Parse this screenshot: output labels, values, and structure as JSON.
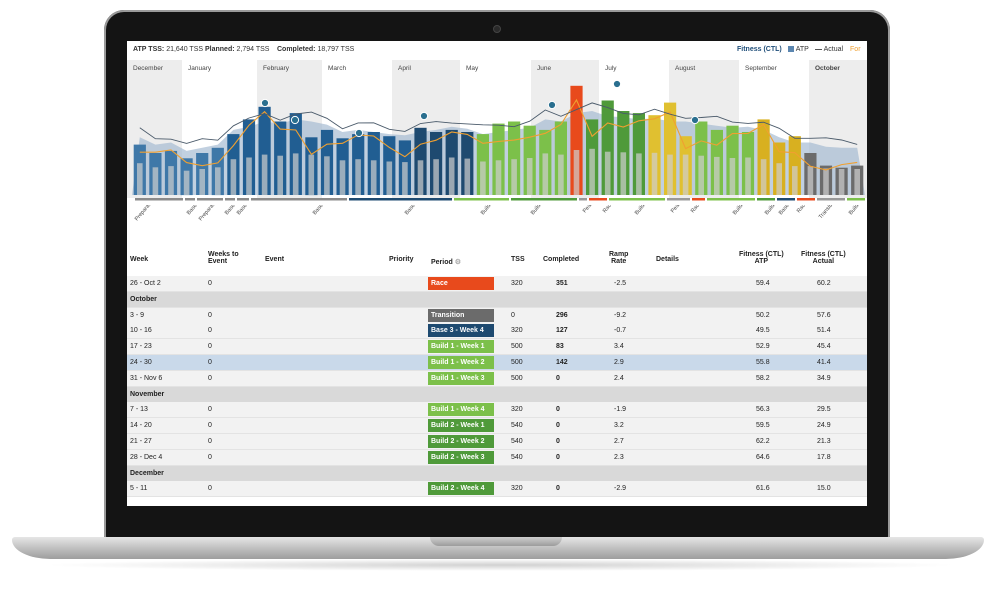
{
  "topbar": {
    "atp_label": "ATP TSS:",
    "atp_value": "21,640 TSS",
    "planned_label": "Planned:",
    "planned_value": "2,794 TSS",
    "completed_label": "Completed:",
    "completed_value": "18,797 TSS"
  },
  "legend": {
    "fitness": "Fitness (CTL)",
    "atp": "ATP",
    "actual": "Actual",
    "form": "For"
  },
  "months": [
    "December",
    "January",
    "February",
    "March",
    "April",
    "May",
    "June",
    "July",
    "August",
    "September",
    "October"
  ],
  "phases": [
    "Preparation",
    "Base 1",
    "Preparation",
    "Base 2",
    "Base 1",
    "Base 2",
    "Base 3",
    "Build 1",
    "Build 2",
    "Peak",
    "Race",
    "Build 1",
    "Peak",
    "Race",
    "Build 1",
    "Build 2",
    "Base 3",
    "Race",
    "Transition",
    "Build 1"
  ],
  "colors": {
    "race": "#e84a1c",
    "transition": "#6b6b6b",
    "base3": "#1e4a70",
    "build1": "#7cc04a",
    "build2": "#4f9a3a",
    "atp_fill": "#9fb7cf",
    "form": "#f0a030"
  },
  "chart_data": {
    "type": "bar",
    "title": "",
    "series": [
      {
        "name": "ATP",
        "values": [
          55,
          48,
          50,
          42,
          45,
          48,
          62,
          65,
          70,
          68,
          72,
          70,
          67,
          60,
          62,
          60,
          58,
          57,
          60,
          62,
          65,
          63,
          58,
          60,
          62,
          64,
          72,
          70,
          78,
          80,
          75,
          74,
          72,
          73,
          70,
          70,
          68,
          66,
          64,
          65,
          62,
          55,
          50,
          50,
          46,
          45,
          45
        ]
      },
      {
        "name": "Actual",
        "values": [
          48,
          40,
          42,
          35,
          40,
          45,
          58,
          72,
          84,
          70,
          78,
          55,
          62,
          54,
          58,
          60,
          56,
          52,
          64,
          60,
          62,
          60,
          58,
          68,
          70,
          66,
          62,
          70,
          104,
          72,
          90,
          80,
          78,
          76,
          88,
          56,
          70,
          62,
          66,
          60,
          72,
          50,
          56,
          40,
          28,
          26,
          28
        ]
      }
    ]
  },
  "table": {
    "headers": {
      "week": "Week",
      "weeks_to_event": "Weeks to\nEvent",
      "event": "Event",
      "priority": "Priority",
      "period": "Period",
      "tss": "TSS",
      "completed": "Completed",
      "ramp": "Ramp\nRate",
      "details": "Details",
      "ctl_atp": "Fitness (CTL)\nATP",
      "ctl_actual": "Fitness (CTL)\nActual"
    },
    "rows": [
      {
        "type": "week",
        "week": "26 - Oct 2",
        "wte": "0",
        "period": "Race",
        "color": "#e84a1c",
        "tss": "320",
        "completed": "351",
        "ramp": "-2.5",
        "ctl_atp": "59.4",
        "ctl_actual": "60.2"
      },
      {
        "type": "month",
        "label": "October"
      },
      {
        "type": "week",
        "week": "3 - 9",
        "wte": "0",
        "period": "Transition",
        "color": "#6b6b6b",
        "tss": "0",
        "completed": "296",
        "ramp": "-9.2",
        "ctl_atp": "50.2",
        "ctl_actual": "57.6"
      },
      {
        "type": "week",
        "week": "10 - 16",
        "wte": "0",
        "period": "Base 3 - Week 4",
        "color": "#1e4a70",
        "tss": "320",
        "completed": "127",
        "ramp": "-0.7",
        "ctl_atp": "49.5",
        "ctl_actual": "51.4"
      },
      {
        "type": "week",
        "week": "17 - 23",
        "wte": "0",
        "period": "Build 1 - Week 1",
        "color": "#7cc04a",
        "tss": "500",
        "completed": "83",
        "ramp": "3.4",
        "ctl_atp": "52.9",
        "ctl_actual": "45.4"
      },
      {
        "type": "week",
        "week": "24 - 30",
        "wte": "0",
        "period": "Build 1 - Week 2",
        "color": "#7cc04a",
        "tss": "500",
        "completed": "142",
        "ramp": "2.9",
        "ctl_atp": "55.8",
        "ctl_actual": "41.4",
        "highlight": true
      },
      {
        "type": "week",
        "week": "31 - Nov 6",
        "wte": "0",
        "period": "Build 1 - Week 3",
        "color": "#7cc04a",
        "tss": "500",
        "completed": "0",
        "ramp": "2.4",
        "ctl_atp": "58.2",
        "ctl_actual": "34.9"
      },
      {
        "type": "month",
        "label": "November"
      },
      {
        "type": "week",
        "week": "7 - 13",
        "wte": "0",
        "period": "Build 1 - Week 4",
        "color": "#7cc04a",
        "tss": "320",
        "completed": "0",
        "ramp": "-1.9",
        "ctl_atp": "56.3",
        "ctl_actual": "29.5"
      },
      {
        "type": "week",
        "week": "14 - 20",
        "wte": "0",
        "period": "Build 2 - Week 1",
        "color": "#4f9a3a",
        "tss": "540",
        "completed": "0",
        "ramp": "3.2",
        "ctl_atp": "59.5",
        "ctl_actual": "24.9"
      },
      {
        "type": "week",
        "week": "21 - 27",
        "wte": "0",
        "period": "Build 2 - Week 2",
        "color": "#4f9a3a",
        "tss": "540",
        "completed": "0",
        "ramp": "2.7",
        "ctl_atp": "62.2",
        "ctl_actual": "21.3"
      },
      {
        "type": "week",
        "week": "28 - Dec 4",
        "wte": "0",
        "period": "Build 2 - Week 3",
        "color": "#4f9a3a",
        "tss": "540",
        "completed": "0",
        "ramp": "2.3",
        "ctl_atp": "64.6",
        "ctl_actual": "17.8"
      },
      {
        "type": "month",
        "label": "December"
      },
      {
        "type": "week",
        "week": "5 - 11",
        "wte": "0",
        "period": "Build 2 - Week 4",
        "color": "#4f9a3a",
        "tss": "320",
        "completed": "0",
        "ramp": "-2.9",
        "ctl_atp": "61.6",
        "ctl_actual": "15.0"
      }
    ]
  }
}
